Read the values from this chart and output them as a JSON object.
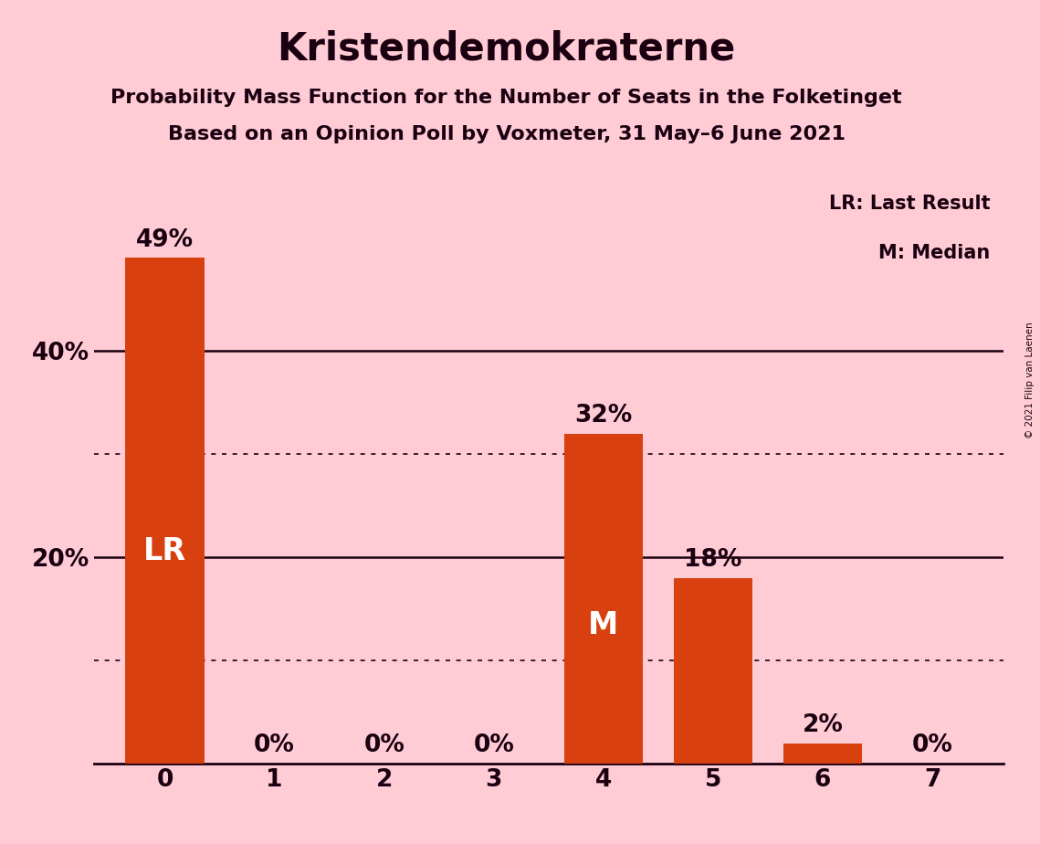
{
  "title": "Kristendemokraterne",
  "subtitle1": "Probability Mass Function for the Number of Seats in the Folketinget",
  "subtitle2": "Based on an Opinion Poll by Voxmeter, 31 May–6 June 2021",
  "copyright": "© 2021 Filip van Laenen",
  "seats": [
    0,
    1,
    2,
    3,
    4,
    5,
    6,
    7
  ],
  "probabilities": [
    0.49,
    0.0,
    0.0,
    0.0,
    0.32,
    0.18,
    0.02,
    0.0
  ],
  "bar_color": "#D94010",
  "background_color": "#FFCCD5",
  "text_color": "#1A0010",
  "bar_label_color_outside": "#1A0010",
  "bar_label_color_inside": "#FFFFFF",
  "lr_seat": 0,
  "median_seat": 4,
  "yticks": [
    0.0,
    0.2,
    0.4
  ],
  "ytick_labels": [
    "",
    "20%",
    "40%"
  ],
  "dotted_lines": [
    0.1,
    0.3
  ],
  "solid_lines": [
    0.2,
    0.4
  ],
  "ylim": [
    0,
    0.56
  ],
  "legend_lr": "LR: Last Result",
  "legend_m": "M: Median",
  "title_fontsize": 30,
  "subtitle_fontsize": 16,
  "axis_label_fontsize": 19,
  "bar_label_fontsize": 19,
  "inside_label_fontsize": 24
}
